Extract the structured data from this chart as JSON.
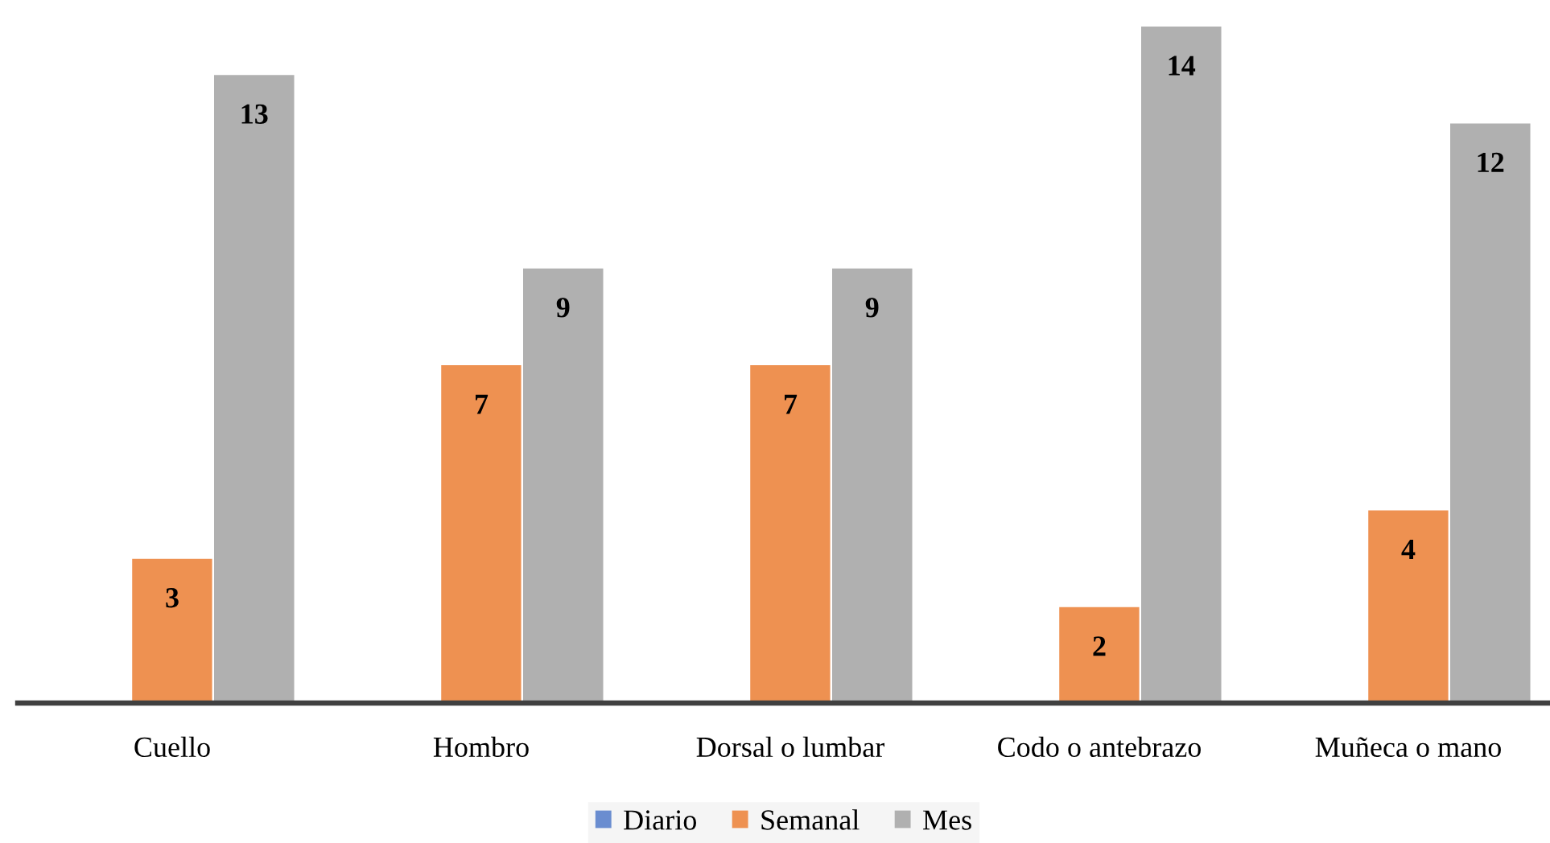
{
  "chart_data": {
    "type": "bar",
    "categories": [
      "Cuello",
      "Hombro",
      "Dorsal o lumbar",
      "Codo o antebrazo",
      "Muñeca o mano"
    ],
    "series": [
      {
        "name": "Diario",
        "color": "#6A8DD0",
        "values": [
          null,
          null,
          null,
          null,
          null
        ]
      },
      {
        "name": "Semanal",
        "color": "#EE9151",
        "values": [
          3,
          7,
          7,
          2,
          4
        ]
      },
      {
        "name": "Mes",
        "color": "#B0B0B0",
        "values": [
          13,
          9,
          9,
          14,
          12
        ]
      }
    ],
    "data_labels": true,
    "legend": "bottom",
    "grid": false,
    "tick_labels": "x"
  }
}
